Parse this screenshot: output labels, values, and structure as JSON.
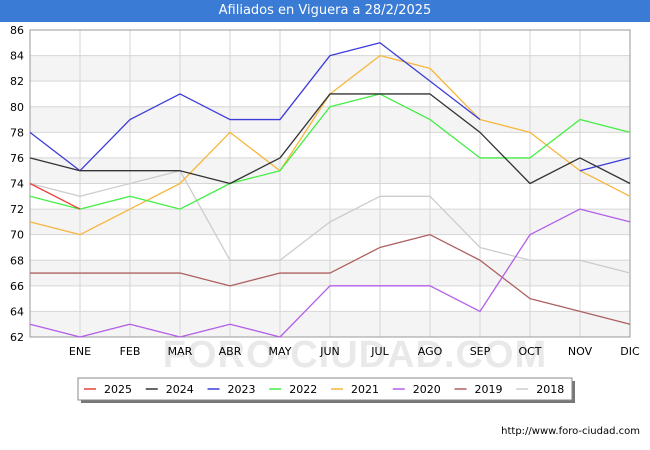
{
  "header": {
    "title": "Afiliados en Viguera a 28/2/2025"
  },
  "footer": {
    "url": "http://www.foro-ciudad.com"
  },
  "watermark": "FORO-CIUDAD.COM",
  "chart_data": {
    "type": "line",
    "title": "Afiliados en Viguera a 28/2/2025",
    "categories": [
      "ENE",
      "FEB",
      "MAR",
      "ABR",
      "MAY",
      "JUN",
      "JUL",
      "AGO",
      "SEP",
      "OCT",
      "NOV",
      "DIC"
    ],
    "ylim": [
      62,
      86
    ],
    "yticks": [
      62,
      64,
      66,
      68,
      70,
      72,
      74,
      76,
      78,
      80,
      82,
      84,
      86
    ],
    "grid": true,
    "legend_position": "bottom",
    "series": [
      {
        "name": "2025",
        "color": "#e8413c",
        "lead": 74,
        "values": [
          72,
          null,
          null,
          null,
          null,
          null,
          null,
          null,
          null,
          null,
          null,
          null
        ]
      },
      {
        "name": "2024",
        "color": "#333333",
        "lead": 76,
        "values": [
          75,
          75,
          75,
          74,
          76,
          81,
          81,
          81,
          78,
          74,
          76,
          74
        ]
      },
      {
        "name": "2023",
        "color": "#3c3cdb",
        "lead": 78,
        "values": [
          75,
          79,
          81,
          79,
          79,
          84,
          85,
          82,
          79,
          null,
          75,
          76
        ]
      },
      {
        "name": "2022",
        "color": "#44ee44",
        "lead": 73,
        "values": [
          72,
          73,
          72,
          74,
          75,
          80,
          81,
          79,
          76,
          76,
          79,
          78
        ]
      },
      {
        "name": "2021",
        "color": "#f7b63c",
        "lead": 71,
        "values": [
          70,
          72,
          74,
          78,
          75,
          81,
          84,
          83,
          79,
          78,
          75,
          73
        ]
      },
      {
        "name": "2020",
        "color": "#b35ee8",
        "lead": 63,
        "values": [
          62,
          63,
          62,
          63,
          62,
          66,
          66,
          66,
          64,
          70,
          72,
          71
        ]
      },
      {
        "name": "2019",
        "color": "#ae6060",
        "lead": 67,
        "values": [
          67,
          67,
          67,
          66,
          67,
          67,
          69,
          70,
          68,
          65,
          64,
          63
        ]
      },
      {
        "name": "2018",
        "color": "#cccccc",
        "lead": 74,
        "values": [
          73,
          74,
          75,
          68,
          68,
          71,
          73,
          73,
          69,
          68,
          68,
          67
        ]
      }
    ]
  }
}
